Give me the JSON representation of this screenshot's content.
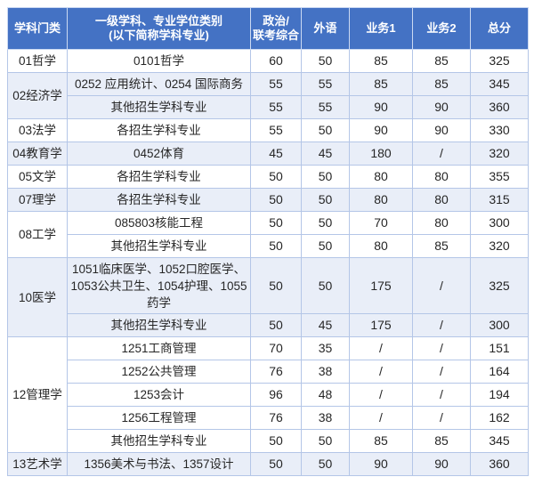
{
  "table": {
    "header": [
      {
        "lines": [
          "学科门类"
        ]
      },
      {
        "lines": [
          "一级学科、专业学位类别",
          "(以下简称学科专业)"
        ]
      },
      {
        "lines": [
          "政治/",
          "联考综合"
        ]
      },
      {
        "lines": [
          "外语"
        ]
      },
      {
        "lines": [
          "业务1"
        ]
      },
      {
        "lines": [
          "业务2"
        ]
      },
      {
        "lines": [
          "总分"
        ]
      }
    ],
    "groups": [
      {
        "category": "01哲学",
        "shaded": false,
        "rows": [
          {
            "major": "0101哲学",
            "scores": [
              "60",
              "50",
              "85",
              "85",
              "325"
            ]
          }
        ]
      },
      {
        "category": "02经济学",
        "shaded": true,
        "rows": [
          {
            "major": "0252 应用统计、0254 国际商务",
            "scores": [
              "55",
              "55",
              "85",
              "85",
              "345"
            ]
          },
          {
            "major": "其他招生学科专业",
            "scores": [
              "55",
              "55",
              "90",
              "90",
              "360"
            ]
          }
        ]
      },
      {
        "category": "03法学",
        "shaded": false,
        "rows": [
          {
            "major": "各招生学科专业",
            "scores": [
              "55",
              "50",
              "90",
              "90",
              "330"
            ]
          }
        ]
      },
      {
        "category": "04教育学",
        "shaded": true,
        "rows": [
          {
            "major": "0452体育",
            "scores": [
              "45",
              "45",
              "180",
              "/",
              "320"
            ]
          }
        ]
      },
      {
        "category": "05文学",
        "shaded": false,
        "rows": [
          {
            "major": "各招生学科专业",
            "scores": [
              "50",
              "50",
              "80",
              "80",
              "355"
            ]
          }
        ]
      },
      {
        "category": "07理学",
        "shaded": true,
        "rows": [
          {
            "major": "各招生学科专业",
            "scores": [
              "50",
              "50",
              "80",
              "80",
              "315"
            ]
          }
        ]
      },
      {
        "category": "08工学",
        "shaded": false,
        "rows": [
          {
            "major": "085803核能工程",
            "scores": [
              "50",
              "50",
              "70",
              "80",
              "300"
            ]
          },
          {
            "major": "其他招生学科专业",
            "scores": [
              "50",
              "50",
              "80",
              "85",
              "320"
            ]
          }
        ]
      },
      {
        "category": "10医学",
        "shaded": true,
        "rows": [
          {
            "major": "1051临床医学、1052口腔医学、1053公共卫生、1054护理、1055药学",
            "scores": [
              "50",
              "50",
              "175",
              "/",
              "325"
            ],
            "tall": true
          },
          {
            "major": "其他招生学科专业",
            "scores": [
              "50",
              "45",
              "175",
              "/",
              "300"
            ]
          }
        ]
      },
      {
        "category": "12管理学",
        "shaded": false,
        "rows": [
          {
            "major": "1251工商管理",
            "scores": [
              "70",
              "35",
              "/",
              "/",
              "151"
            ]
          },
          {
            "major": "1252公共管理",
            "scores": [
              "76",
              "38",
              "/",
              "/",
              "164"
            ]
          },
          {
            "major": "1253会计",
            "scores": [
              "96",
              "48",
              "/",
              "/",
              "194"
            ]
          },
          {
            "major": "1256工程管理",
            "scores": [
              "76",
              "38",
              "/",
              "/",
              "162"
            ]
          },
          {
            "major": "其他招生学科专业",
            "scores": [
              "50",
              "50",
              "85",
              "85",
              "345"
            ]
          }
        ]
      },
      {
        "category": "13艺术学",
        "shaded": true,
        "rows": [
          {
            "major": "1356美术与书法、1357设计",
            "scores": [
              "50",
              "50",
              "90",
              "90",
              "360"
            ]
          }
        ]
      }
    ]
  },
  "colors": {
    "header_bg": "#4472C4",
    "header_text": "#FFFFFF",
    "header_border": "#CBD9F2",
    "row_border": "#B4C6E7",
    "shaded_row_bg": "#E9EEF8",
    "row_bg": "#FFFFFF",
    "text": "#262626"
  }
}
